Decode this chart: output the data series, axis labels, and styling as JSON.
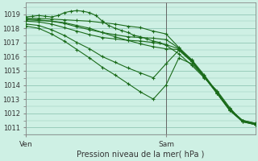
{
  "bg_color": "#cef0e4",
  "grid_color": "#99ccbb",
  "line_color": "#1a6b1a",
  "title": "Pression niveau de la mer( hPa )",
  "ylim": [
    1010.5,
    1019.8
  ],
  "yticks": [
    1011,
    1012,
    1013,
    1014,
    1015,
    1016,
    1017,
    1018,
    1019
  ],
  "xlim": [
    0,
    36
  ],
  "ven_x": 0,
  "sam_x": 22,
  "series": [
    [
      0,
      1018.8,
      1,
      1018.85,
      2,
      1018.9,
      3,
      1018.85,
      4,
      1018.8,
      5,
      1018.9,
      6,
      1019.1,
      7,
      1019.2,
      8,
      1019.25,
      9,
      1019.2,
      10,
      1019.1,
      11,
      1018.9,
      12,
      1018.5,
      13,
      1018.2,
      14,
      1018.0,
      15,
      1017.85,
      16,
      1017.7,
      17,
      1017.5,
      18,
      1017.4,
      19,
      1017.25,
      20,
      1017.1,
      21,
      1017.0,
      22,
      1016.8,
      24,
      1016.2,
      26,
      1015.4,
      28,
      1014.5,
      30,
      1013.6,
      32,
      1012.4,
      34,
      1011.4,
      36,
      1011.2
    ],
    [
      0,
      1018.7,
      2,
      1018.7,
      4,
      1018.65,
      6,
      1018.6,
      8,
      1018.55,
      10,
      1018.5,
      12,
      1018.4,
      14,
      1018.3,
      16,
      1018.15,
      18,
      1018.05,
      20,
      1017.8,
      22,
      1017.6,
      24,
      1016.65,
      26,
      1015.8,
      28,
      1014.7,
      30,
      1013.5,
      32,
      1012.3,
      34,
      1011.5,
      36,
      1011.3
    ],
    [
      0,
      1018.65,
      2,
      1018.6,
      4,
      1018.5,
      6,
      1018.4,
      8,
      1018.2,
      10,
      1018.0,
      12,
      1017.7,
      14,
      1017.4,
      16,
      1017.15,
      18,
      1016.9,
      20,
      1016.7,
      22,
      1016.55,
      24,
      1016.5,
      26,
      1015.7,
      28,
      1014.6,
      30,
      1013.4,
      32,
      1012.2,
      34,
      1011.45,
      36,
      1011.2
    ],
    [
      0,
      1018.6,
      2,
      1018.55,
      4,
      1018.5,
      6,
      1018.35,
      8,
      1018.1,
      10,
      1017.9,
      12,
      1017.7,
      14,
      1017.55,
      16,
      1017.4,
      18,
      1017.35,
      20,
      1017.3,
      22,
      1017.2,
      24,
      1016.6,
      26,
      1015.75,
      28,
      1014.6,
      30,
      1013.45,
      32,
      1012.25,
      34,
      1011.45,
      36,
      1011.25
    ],
    [
      0,
      1018.5,
      2,
      1018.45,
      4,
      1018.3,
      6,
      1018.05,
      8,
      1017.8,
      10,
      1017.55,
      12,
      1017.35,
      14,
      1017.25,
      16,
      1017.15,
      18,
      1017.1,
      20,
      1017.0,
      22,
      1016.85,
      24,
      1016.55,
      26,
      1015.7,
      28,
      1014.55,
      30,
      1013.4,
      32,
      1012.2,
      34,
      1011.4,
      36,
      1011.2
    ],
    [
      0,
      1018.15,
      2,
      1018.0,
      4,
      1017.6,
      6,
      1017.1,
      8,
      1016.5,
      10,
      1015.9,
      12,
      1015.25,
      14,
      1014.7,
      16,
      1014.1,
      18,
      1013.5,
      20,
      1013.0,
      22,
      1014.0,
      24,
      1015.9,
      26,
      1015.5,
      28,
      1014.6,
      30,
      1013.5,
      32,
      1012.3,
      34,
      1011.5,
      36,
      1011.3
    ],
    [
      0,
      1018.3,
      2,
      1018.2,
      4,
      1017.9,
      6,
      1017.5,
      8,
      1017.0,
      10,
      1016.55,
      12,
      1016.0,
      14,
      1015.6,
      16,
      1015.2,
      18,
      1014.85,
      20,
      1014.5,
      22,
      1015.5,
      24,
      1016.45,
      26,
      1015.65,
      28,
      1014.55,
      30,
      1013.45,
      32,
      1012.25,
      34,
      1011.45,
      36,
      1011.25
    ]
  ]
}
